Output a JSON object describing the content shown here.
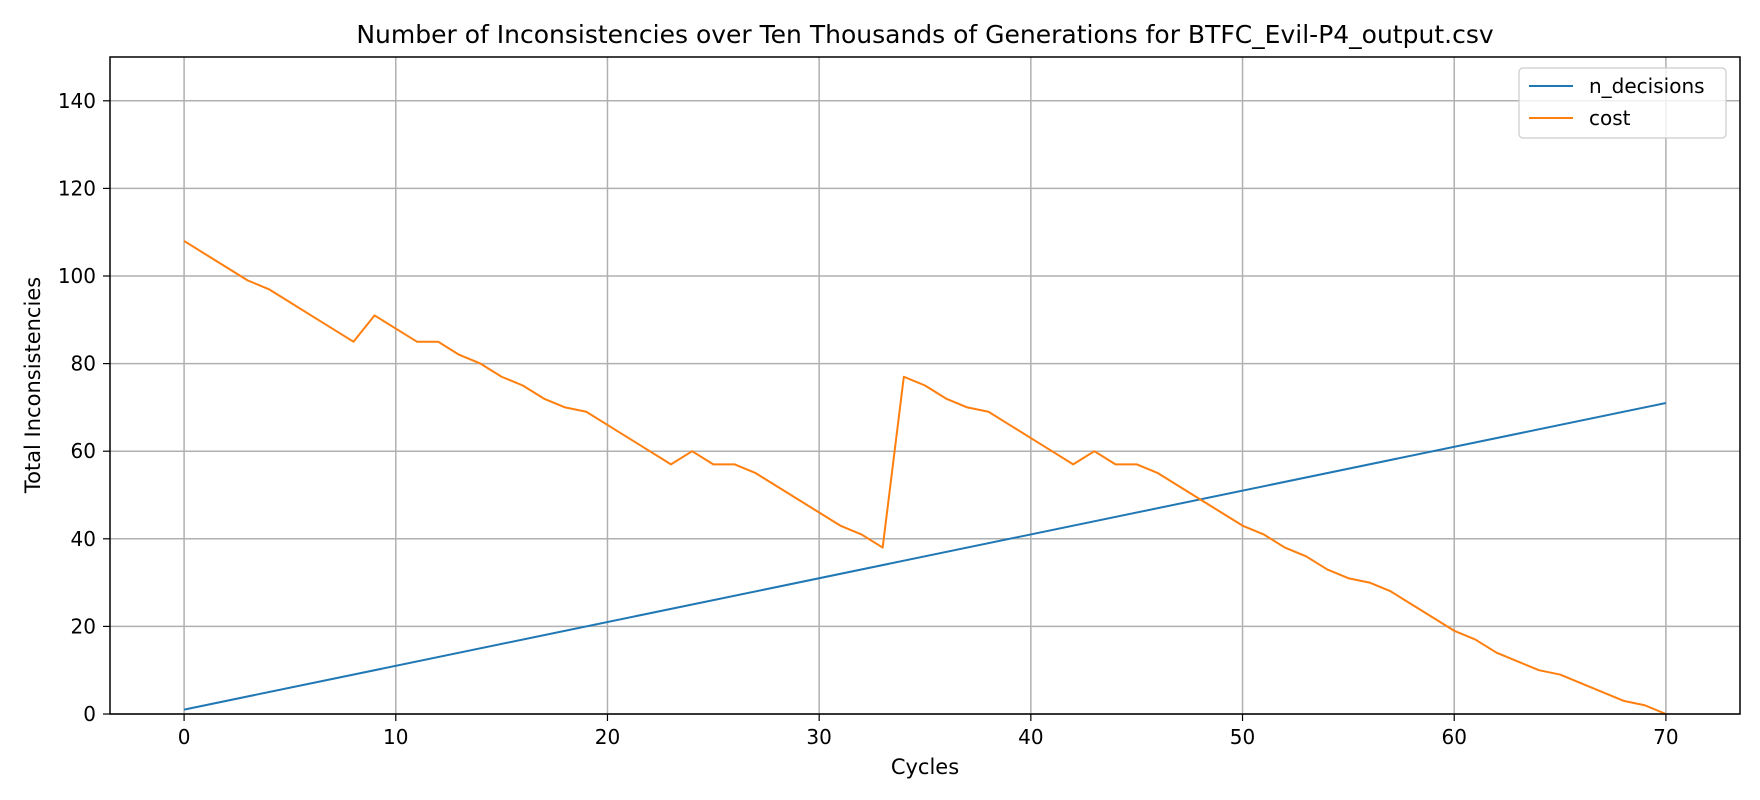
{
  "chart_data": {
    "type": "line",
    "title": "Number of Inconsistencies over Ten Thousands of Generations for BTFC_Evil-P4_output.csv",
    "xlabel": "Cycles",
    "ylabel": "Total Inconsistencies",
    "xlim": [
      -3.5,
      73.5
    ],
    "ylim": [
      0,
      150
    ],
    "xticks": [
      0,
      10,
      20,
      30,
      40,
      50,
      60,
      70
    ],
    "yticks": [
      0,
      20,
      40,
      60,
      80,
      100,
      120,
      140
    ],
    "grid": true,
    "legend_position": "top-right",
    "series": [
      {
        "name": "n_decisions",
        "color": "#1f77b4",
        "x": [
          0,
          70
        ],
        "y": [
          1,
          71
        ]
      },
      {
        "name": "cost",
        "color": "#ff7f0e",
        "x": [
          0,
          1,
          2,
          3,
          4,
          5,
          6,
          7,
          8,
          9,
          10,
          11,
          12,
          13,
          14,
          15,
          16,
          17,
          18,
          19,
          20,
          21,
          22,
          23,
          24,
          25,
          26,
          27,
          28,
          29,
          30,
          31,
          32,
          33,
          34,
          35,
          36,
          37,
          38,
          39,
          40,
          41,
          42,
          43,
          44,
          45,
          46,
          47,
          48,
          49,
          50,
          51,
          52,
          53,
          54,
          55,
          56,
          57,
          58,
          59,
          60,
          61,
          62,
          63,
          64,
          65,
          66,
          67,
          68,
          69,
          70
        ],
        "y": [
          108,
          105,
          102,
          99,
          97,
          94,
          91,
          88,
          85,
          91,
          88,
          85,
          85,
          82,
          80,
          77,
          75,
          72,
          70,
          69,
          66,
          63,
          60,
          57,
          60,
          57,
          57,
          55,
          52,
          49,
          46,
          43,
          41,
          38,
          77,
          75,
          72,
          70,
          69,
          66,
          63,
          60,
          57,
          60,
          57,
          57,
          55,
          52,
          49,
          46,
          43,
          41,
          38,
          36,
          33,
          31,
          30,
          28,
          25,
          22,
          19,
          17,
          14,
          12,
          10,
          9,
          7,
          5,
          3,
          2,
          0
        ]
      }
    ]
  }
}
